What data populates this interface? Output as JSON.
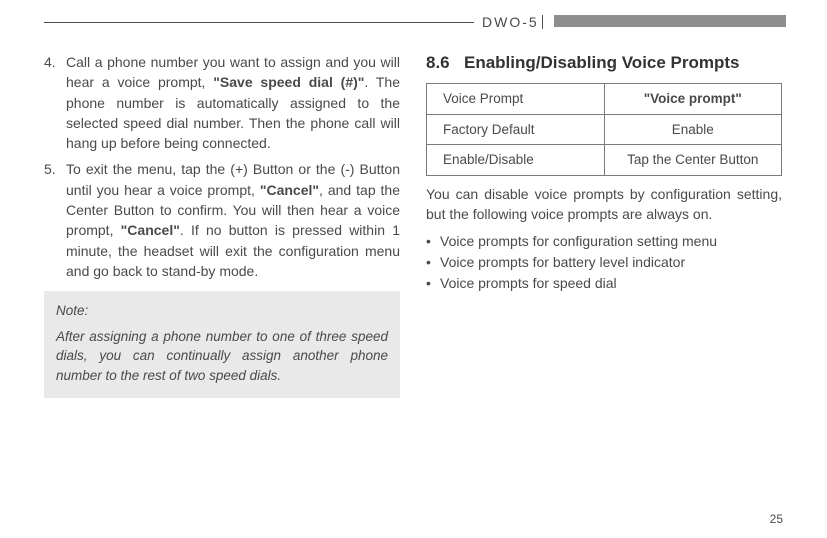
{
  "header": {
    "model": "DWO-5"
  },
  "left": {
    "item4": {
      "num": "4.",
      "pre": "Call a phone number you want to assign and you will hear a voice prompt, ",
      "bold": "\"Save speed dial (#)\"",
      "post": ". The phone number is automatically assigned to the selected speed dial number. Then the phone call will hang up before being connected."
    },
    "item5": {
      "num": "5.",
      "p1a": "To exit the menu, tap the (+) Button or the (-) Button until you hear a voice prompt, ",
      "p1b": "\"Cancel\"",
      "p1c": ", and tap the Center Button to confirm. You will then hear a voice prompt, ",
      "p1d": "\"Cancel\"",
      "p1e": ". If no button is pressed within 1 minute, the headset will exit the configuration menu and go back to stand-by mode."
    },
    "note": {
      "title": "Note:",
      "body": "After assigning a phone number to one of three speed dials, you can continually assign another phone number to the rest of two speed dials."
    }
  },
  "right": {
    "heading_num": "8.6",
    "heading_text": "Enabling/Disabling Voice Prompts",
    "table": {
      "r1c1": "Voice Prompt",
      "r1c2": "\"Voice prompt\"",
      "r2c1": "Factory Default",
      "r2c2": "Enable",
      "r3c1": "Enable/Disable",
      "r3c2": "Tap the Center Button"
    },
    "para": "You can disable voice prompts by configuration setting, but the following voice prompts are always on.",
    "b1": "Voice prompts for configuration setting menu",
    "b2": "Voice prompts for battery level indicator",
    "b3": "Voice prompts for speed dial"
  },
  "page_number": "25"
}
